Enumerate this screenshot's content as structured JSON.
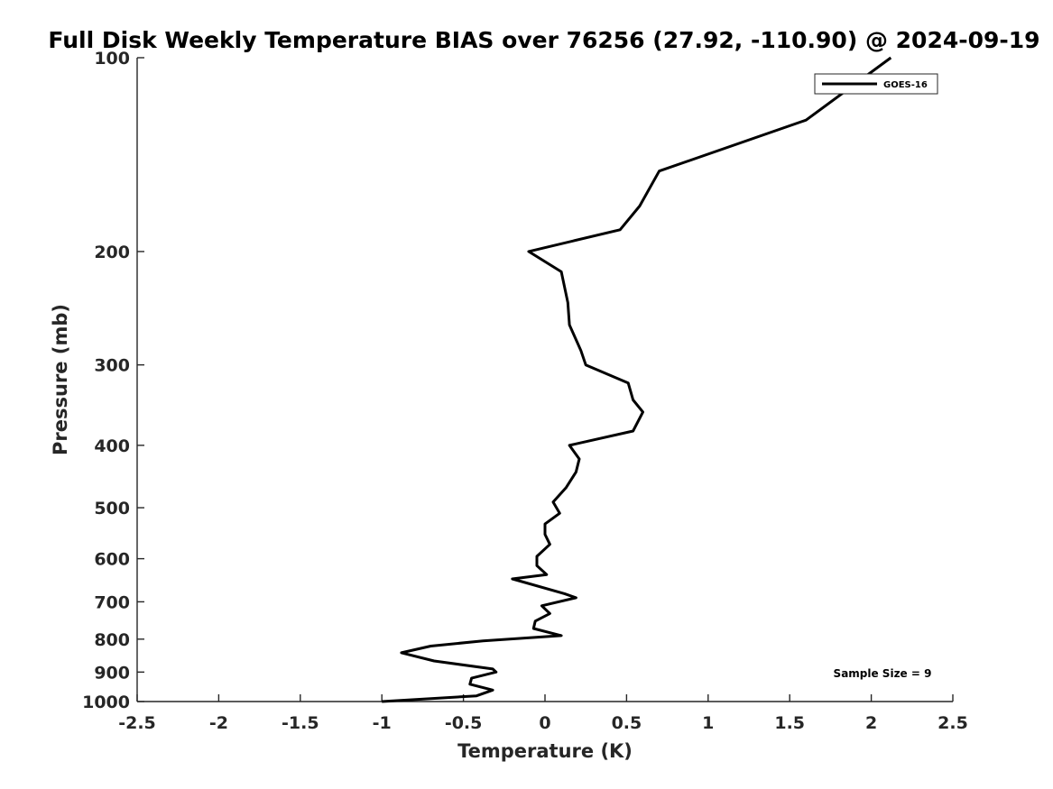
{
  "chart_data": {
    "type": "line",
    "title": "Full Disk Weekly Temperature BIAS over 76256 (27.92, -110.90) @ 2024-09-19",
    "xlabel": "Temperature (K)",
    "ylabel": "Pressure (mb)",
    "xlim": [
      -2.5,
      2.5
    ],
    "ylim": [
      1000,
      100
    ],
    "y_scale": "log",
    "y_reversed": true,
    "grid": false,
    "legend_position": "top-right",
    "x_ticks": [
      -2.5,
      -2,
      -1.5,
      -1,
      -0.5,
      0,
      0.5,
      1,
      1.5,
      2,
      2.5
    ],
    "x_tick_labels": [
      "-2.5",
      "-2",
      "-1.5",
      "-1",
      "-0.5",
      "0",
      "0.5",
      "1",
      "1.5",
      "2",
      "2.5"
    ],
    "y_ticks": [
      100,
      200,
      300,
      400,
      500,
      600,
      700,
      800,
      900,
      1000
    ],
    "y_tick_labels": [
      "100",
      "200",
      "300",
      "400",
      "500",
      "600",
      "700",
      "800",
      "900",
      "1000"
    ],
    "series": [
      {
        "name": "GOES-16",
        "color": "#000000",
        "points": [
          [
            2.12,
            100
          ],
          [
            1.6,
            125
          ],
          [
            0.7,
            150
          ],
          [
            0.58,
            170
          ],
          [
            0.46,
            185
          ],
          [
            -0.1,
            200
          ],
          [
            0.1,
            215
          ],
          [
            0.14,
            240
          ],
          [
            0.15,
            260
          ],
          [
            0.22,
            285
          ],
          [
            0.25,
            300
          ],
          [
            0.51,
            320
          ],
          [
            0.54,
            340
          ],
          [
            0.6,
            355
          ],
          [
            0.54,
            380
          ],
          [
            0.15,
            400
          ],
          [
            0.21,
            420
          ],
          [
            0.19,
            440
          ],
          [
            0.13,
            465
          ],
          [
            0.05,
            490
          ],
          [
            0.09,
            510
          ],
          [
            0.0,
            530
          ],
          [
            0.0,
            550
          ],
          [
            0.03,
            570
          ],
          [
            -0.05,
            595
          ],
          [
            -0.05,
            615
          ],
          [
            0.01,
            635
          ],
          [
            -0.2,
            645
          ],
          [
            0.12,
            680
          ],
          [
            0.19,
            690
          ],
          [
            -0.02,
            710
          ],
          [
            0.03,
            730
          ],
          [
            -0.06,
            750
          ],
          [
            -0.07,
            770
          ],
          [
            0.1,
            790
          ],
          [
            -0.38,
            805
          ],
          [
            -0.7,
            820
          ],
          [
            -0.88,
            840
          ],
          [
            -0.68,
            865
          ],
          [
            -0.32,
            890
          ],
          [
            -0.3,
            900
          ],
          [
            -0.45,
            920
          ],
          [
            -0.46,
            940
          ],
          [
            -0.32,
            960
          ],
          [
            -0.42,
            980
          ],
          [
            -1.0,
            1000
          ]
        ]
      }
    ],
    "annotations": [
      {
        "text": "Sample Size = 9",
        "position": "bottom-right"
      }
    ]
  }
}
